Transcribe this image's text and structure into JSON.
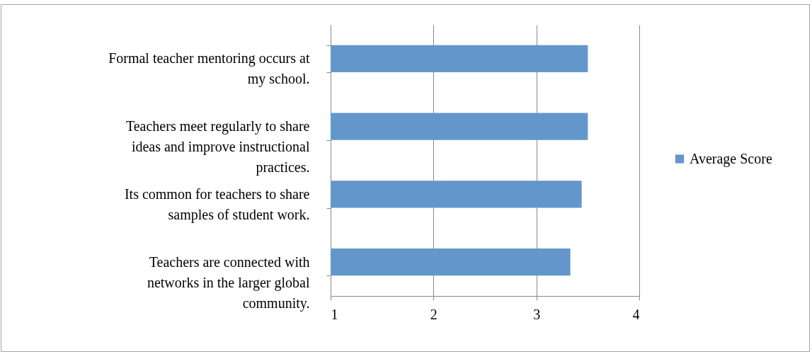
{
  "chart_data": {
    "type": "bar",
    "orientation": "horizontal",
    "categories": [
      "Formal teacher mentoring occurs at my school.",
      "Teachers meet regularly to share ideas and improve instructional practices.",
      "Its common for teachers to share samples of student work.",
      "Teachers are connected with networks in the larger global community."
    ],
    "series": [
      {
        "name": "Average Score",
        "color": "#6396cb",
        "values": [
          3.5,
          3.5,
          3.44,
          3.33
        ]
      }
    ],
    "xlim": [
      1,
      4
    ],
    "xticks": [
      1,
      2,
      3,
      4
    ],
    "grid": "x",
    "legend": "right"
  }
}
